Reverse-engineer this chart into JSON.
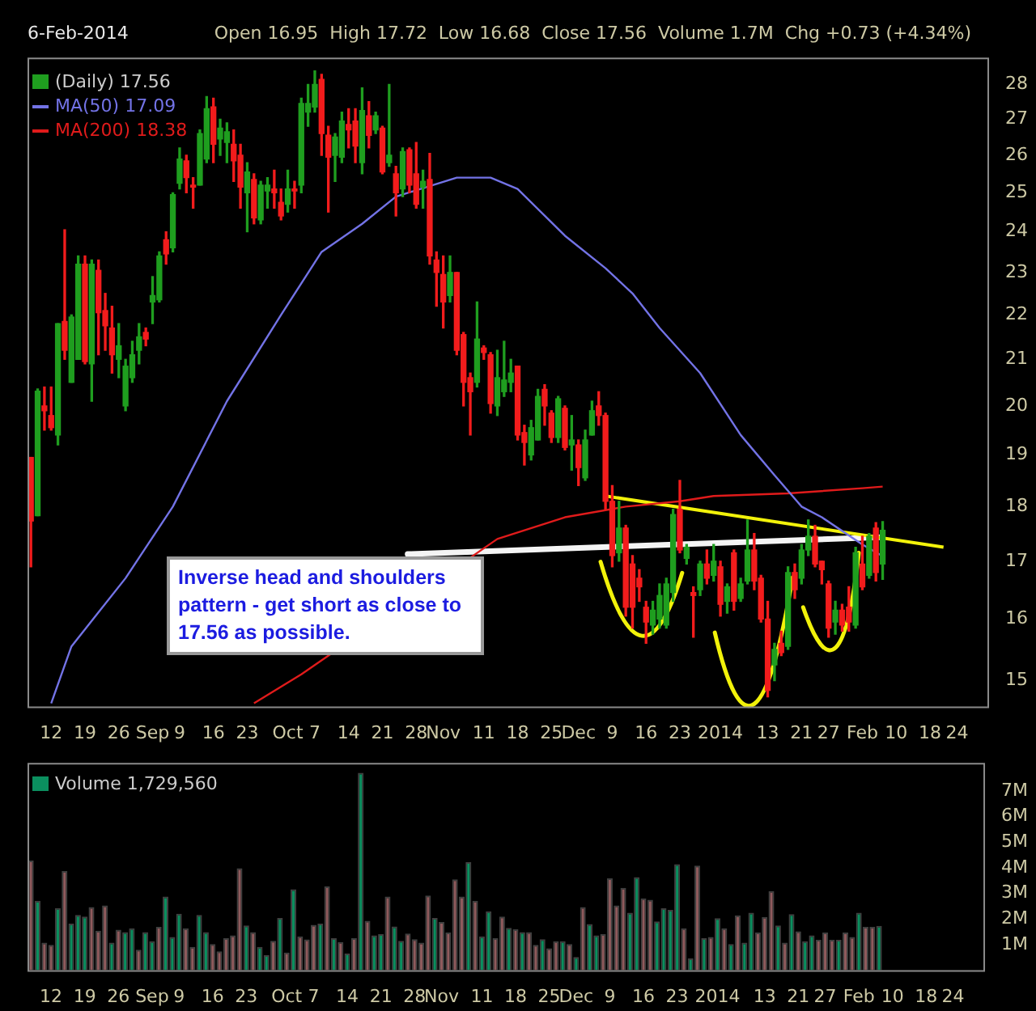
{
  "chart_data": [
    {
      "type": "candlestick",
      "subtitle": "6-Feb-2014",
      "annotations": [
        "Open 16.95  High 17.72  Low 16.68  Close 17.56  Volume 1.7M  Chg +0.73 (+4.34%)",
        "Inverse head and shoulders pattern - get short as close to 17.56 as possible."
      ],
      "categories": [
        null,
        null,
        null,
        "12",
        null,
        null,
        null,
        null,
        "19",
        null,
        null,
        null,
        null,
        "26",
        null,
        null,
        null,
        null,
        "Sep",
        null,
        null,
        null,
        "9",
        null,
        null,
        null,
        null,
        "16",
        null,
        null,
        null,
        null,
        "23",
        null,
        null,
        null,
        null,
        null,
        "Oct",
        null,
        null,
        null,
        "7",
        null,
        null,
        null,
        null,
        "14",
        null,
        null,
        null,
        null,
        "21",
        null,
        null,
        null,
        null,
        "28",
        null,
        null,
        null,
        "Nov",
        null,
        null,
        null,
        null,
        null,
        "11",
        null,
        null,
        null,
        null,
        "18",
        null,
        null,
        null,
        null,
        "25",
        null,
        null,
        null,
        "Dec",
        null,
        null,
        null,
        null,
        "9",
        null,
        null,
        null,
        null,
        "16",
        null,
        null,
        null,
        null,
        "23",
        null,
        null,
        null,
        null,
        null,
        "2014",
        null,
        null,
        null,
        null,
        null,
        null,
        "13",
        null,
        null,
        null,
        null,
        "21",
        null,
        null,
        null,
        "27",
        null,
        null,
        null,
        null,
        "Feb",
        null,
        null,
        null,
        null,
        "10",
        null,
        null,
        null,
        null,
        "18",
        null,
        null,
        null,
        "24",
        null,
        null,
        null,
        null
      ],
      "series": [
        {
          "type": "candlestick",
          "name": "(Daily) 17.56",
          "ohlc": [
            [
              18.95,
              18.95,
              16.9,
              17.73
            ],
            [
              17.83,
              20.36,
              17.83,
              20.31
            ],
            [
              20.0,
              20.4,
              19.5,
              19.9
            ],
            [
              19.8,
              20.4,
              19.5,
              19.55
            ],
            [
              19.4,
              21.8,
              19.2,
              21.8
            ],
            [
              21.85,
              24.05,
              21.0,
              21.2
            ],
            [
              20.5,
              22.0,
              20.5,
              21.95
            ],
            [
              21.0,
              23.4,
              21.0,
              23.2
            ],
            [
              23.2,
              23.4,
              20.9,
              20.95
            ],
            [
              20.9,
              23.3,
              20.1,
              23.2
            ],
            [
              23.05,
              23.3,
              21.1,
              22.05
            ],
            [
              22.1,
              22.5,
              21.2,
              21.75
            ],
            [
              21.7,
              22.2,
              20.7,
              21.1
            ],
            [
              21.0,
              21.8,
              20.6,
              21.3
            ],
            [
              20.0,
              21.0,
              19.9,
              20.85
            ],
            [
              20.6,
              21.4,
              20.5,
              21.1
            ],
            [
              21.2,
              21.8,
              20.9,
              21.5
            ],
            [
              21.6,
              21.7,
              21.3,
              21.45
            ],
            [
              22.3,
              22.9,
              21.8,
              22.45
            ],
            [
              22.35,
              23.5,
              22.3,
              23.4
            ],
            [
              23.8,
              24.0,
              23.2,
              23.45
            ],
            [
              23.6,
              25.0,
              23.5,
              24.95
            ],
            [
              25.25,
              26.2,
              25.1,
              25.9
            ],
            [
              25.85,
              26.0,
              25.0,
              25.4
            ],
            [
              25.2,
              25.4,
              24.6,
              25.15
            ],
            [
              25.2,
              26.7,
              25.2,
              26.6
            ],
            [
              25.9,
              27.65,
              25.8,
              27.3
            ],
            [
              27.35,
              27.6,
              25.8,
              26.3
            ],
            [
              26.45,
              27.0,
              26.0,
              26.75
            ],
            [
              26.35,
              26.9,
              25.8,
              26.65
            ],
            [
              26.3,
              26.7,
              25.3,
              25.85
            ],
            [
              26.0,
              26.3,
              24.6,
              25.15
            ],
            [
              25.0,
              25.8,
              24.0,
              25.55
            ],
            [
              25.35,
              25.5,
              24.2,
              24.35
            ],
            [
              24.3,
              25.3,
              24.2,
              25.2
            ],
            [
              25.05,
              25.4,
              24.6,
              25.2
            ],
            [
              25.1,
              25.6,
              24.6,
              25.0
            ],
            [
              24.75,
              25.1,
              24.3,
              24.4
            ],
            [
              24.7,
              25.6,
              24.5,
              25.1
            ],
            [
              25.1,
              25.3,
              24.6,
              25.05
            ],
            [
              25.2,
              27.6,
              25.0,
              27.45
            ],
            [
              27.2,
              28.0,
              26.8,
              27.45
            ],
            [
              27.35,
              28.4,
              27.2,
              28.0
            ],
            [
              28.15,
              28.3,
              26.0,
              26.6
            ],
            [
              26.55,
              26.8,
              24.5,
              25.95
            ],
            [
              26.0,
              26.6,
              25.3,
              26.5
            ],
            [
              25.95,
              27.2,
              25.8,
              26.95
            ],
            [
              26.85,
              27.3,
              26.2,
              26.7
            ],
            [
              26.95,
              27.3,
              25.8,
              26.25
            ],
            [
              25.8,
              27.9,
              25.5,
              27.25
            ],
            [
              27.1,
              27.5,
              26.2,
              26.55
            ],
            [
              26.7,
              27.2,
              26.6,
              27.1
            ],
            [
              26.75,
              26.8,
              25.5,
              25.55
            ],
            [
              25.8,
              28.0,
              25.7,
              26.0
            ],
            [
              25.5,
              25.7,
              24.4,
              25.0
            ],
            [
              25.1,
              26.2,
              24.9,
              26.1
            ],
            [
              26.15,
              26.2,
              25.0,
              25.2
            ],
            [
              25.5,
              26.35,
              24.6,
              24.7
            ],
            [
              25.15,
              25.6,
              24.6,
              25.3
            ],
            [
              25.35,
              26.05,
              23.2,
              23.4
            ],
            [
              23.3,
              23.5,
              22.2,
              23.0
            ],
            [
              22.95,
              23.4,
              21.7,
              22.3
            ],
            [
              22.45,
              23.4,
              22.3,
              23.0
            ],
            [
              23.0,
              23.0,
              21.1,
              21.2
            ],
            [
              21.55,
              21.6,
              20.0,
              20.5
            ],
            [
              20.6,
              20.7,
              19.4,
              20.3
            ],
            [
              20.5,
              22.3,
              20.4,
              21.45
            ],
            [
              21.25,
              21.3,
              21.0,
              21.15
            ],
            [
              21.1,
              21.15,
              19.85,
              20.05
            ],
            [
              20.0,
              21.2,
              19.8,
              20.6
            ],
            [
              20.3,
              21.4,
              20.2,
              20.55
            ],
            [
              20.5,
              21.0,
              20.3,
              20.7
            ],
            [
              20.85,
              20.85,
              19.3,
              19.4
            ],
            [
              19.45,
              19.6,
              18.8,
              19.25
            ],
            [
              19.0,
              19.7,
              18.9,
              19.55
            ],
            [
              19.3,
              20.35,
              19.3,
              20.2
            ],
            [
              20.35,
              20.45,
              19.6,
              20.0
            ],
            [
              19.85,
              19.9,
              19.25,
              19.35
            ],
            [
              19.35,
              20.2,
              19.25,
              20.15
            ],
            [
              19.95,
              20.0,
              19.1,
              19.15
            ],
            [
              19.2,
              19.8,
              18.7,
              19.3
            ],
            [
              19.2,
              19.3,
              18.4,
              18.75
            ],
            [
              18.55,
              19.5,
              18.5,
              19.3
            ],
            [
              19.4,
              20.1,
              19.4,
              19.9
            ],
            [
              20.0,
              20.3,
              19.6,
              19.8
            ],
            [
              19.8,
              19.85,
              17.95,
              18.1
            ],
            [
              18.1,
              18.4,
              16.9,
              17.1
            ],
            [
              17.15,
              18.1,
              17.0,
              17.6
            ],
            [
              17.6,
              17.65,
              16.05,
              16.2
            ],
            [
              16.95,
              17.1,
              15.85,
              16.2
            ],
            [
              16.7,
              16.85,
              16.3,
              16.55
            ],
            [
              16.2,
              16.3,
              15.6,
              15.95
            ],
            [
              15.9,
              16.3,
              15.75,
              16.15
            ],
            [
              16.0,
              16.6,
              15.85,
              16.4
            ],
            [
              15.9,
              16.7,
              15.85,
              16.6
            ],
            [
              16.45,
              17.95,
              16.3,
              17.85
            ],
            [
              17.95,
              18.5,
              17.15,
              17.2
            ],
            [
              17.05,
              17.3,
              16.95,
              17.25
            ],
            [
              16.45,
              16.55,
              15.7,
              16.4
            ],
            [
              16.5,
              17.0,
              16.4,
              16.95
            ],
            [
              16.95,
              17.2,
              16.6,
              16.7
            ],
            [
              16.75,
              17.3,
              16.65,
              17.0
            ],
            [
              16.9,
              17.0,
              16.05,
              16.25
            ],
            [
              16.3,
              16.6,
              16.1,
              16.55
            ],
            [
              17.15,
              17.2,
              16.15,
              16.3
            ],
            [
              16.35,
              16.7,
              16.3,
              16.6
            ],
            [
              16.65,
              17.75,
              16.6,
              17.2
            ],
            [
              17.2,
              17.5,
              16.5,
              16.65
            ],
            [
              16.7,
              16.75,
              15.95,
              16.0
            ],
            [
              16.0,
              16.3,
              14.75,
              14.85
            ],
            [
              15.25,
              15.6,
              15.0,
              15.5
            ],
            [
              15.6,
              15.8,
              15.4,
              15.45
            ],
            [
              15.55,
              16.9,
              15.5,
              16.8
            ],
            [
              16.8,
              16.95,
              16.35,
              16.5
            ],
            [
              16.7,
              17.3,
              16.6,
              17.2
            ],
            [
              17.2,
              17.75,
              17.1,
              17.45
            ],
            [
              17.45,
              17.65,
              16.9,
              16.95
            ],
            [
              17.0,
              17.0,
              16.6,
              16.85
            ],
            [
              16.6,
              16.65,
              15.7,
              15.85
            ],
            [
              15.95,
              16.3,
              15.75,
              16.15
            ],
            [
              16.15,
              16.25,
              15.8,
              15.9
            ],
            [
              16.2,
              16.55,
              15.8,
              15.95
            ],
            [
              15.9,
              17.25,
              15.85,
              17.15
            ],
            [
              16.95,
              17.45,
              16.5,
              16.55
            ],
            [
              16.75,
              17.5,
              16.7,
              17.45
            ],
            [
              17.6,
              17.7,
              16.65,
              16.8
            ],
            [
              16.95,
              17.72,
              16.68,
              17.56
            ],
            null,
            null,
            null,
            null,
            null,
            null,
            null,
            null,
            null,
            null,
            null,
            null,
            null,
            null,
            null
          ],
          "colors": [
            "#f21c1c",
            "#1f9e1f",
            "#f21c1c",
            "#f21c1c",
            "#1f9e1f",
            "#f21c1c",
            "#1f9e1f",
            "#1f9e1f",
            "#f21c1c",
            "#1f9e1f",
            "#f21c1c",
            "#f21c1c",
            "#f21c1c",
            "#1f9e1f",
            "#1f9e1f",
            "#1f9e1f",
            "#1f9e1f",
            "#f21c1c",
            "#1f9e1f",
            "#1f9e1f",
            "#f21c1c",
            "#1f9e1f",
            "#1f9e1f",
            "#f21c1c",
            "#f21c1c",
            "#1f9e1f",
            "#1f9e1f",
            "#f21c1c",
            "#1f9e1f",
            "#1f9e1f",
            "#f21c1c",
            "#f21c1c",
            "#1f9e1f",
            "#f21c1c",
            "#1f9e1f",
            "#1f9e1f",
            "#f21c1c",
            "#f21c1c",
            "#1f9e1f",
            "#f21c1c",
            "#1f9e1f",
            "#1f9e1f",
            "#1f9e1f",
            "#f21c1c",
            "#f21c1c",
            "#1f9e1f",
            "#1f9e1f",
            "#f21c1c",
            "#f21c1c",
            "#1f9e1f",
            "#f21c1c",
            "#1f9e1f",
            "#f21c1c",
            "#1f9e1f",
            "#f21c1c",
            "#1f9e1f",
            "#f21c1c",
            "#f21c1c",
            "#1f9e1f",
            "#f21c1c",
            "#f21c1c",
            "#f21c1c",
            "#1f9e1f",
            "#f21c1c",
            "#f21c1c",
            "#f21c1c",
            "#1f9e1f",
            "#f21c1c",
            "#f21c1c",
            "#1f9e1f",
            "#1f9e1f",
            "#1f9e1f",
            "#f21c1c",
            "#f21c1c",
            "#1f9e1f",
            "#1f9e1f",
            "#f21c1c",
            "#f21c1c",
            "#1f9e1f",
            "#f21c1c",
            "#1f9e1f",
            "#f21c1c",
            "#1f9e1f",
            "#1f9e1f",
            "#f21c1c",
            "#f21c1c",
            "#f21c1c",
            "#1f9e1f",
            "#f21c1c",
            "#f21c1c",
            "#f21c1c",
            "#f21c1c",
            "#1f9e1f",
            "#1f9e1f",
            "#1f9e1f",
            "#1f9e1f",
            "#f21c1c",
            "#1f9e1f",
            "#f21c1c",
            "#1f9e1f",
            "#f21c1c",
            "#1f9e1f",
            "#f21c1c",
            "#1f9e1f",
            "#f21c1c",
            "#1f9e1f",
            "#1f9e1f",
            "#f21c1c",
            "#f21c1c",
            "#f21c1c",
            "#1f9e1f",
            "#f21c1c",
            "#1f9e1f",
            "#f21c1c",
            "#1f9e1f",
            "#1f9e1f",
            "#f21c1c",
            "#f21c1c",
            "#f21c1c",
            "#1f9e1f",
            "#f21c1c",
            "#f21c1c",
            "#1f9e1f",
            "#f21c1c",
            "#1f9e1f",
            "#f21c1c",
            "#1f9e1f",
            null,
            null,
            null,
            null,
            null,
            null,
            null,
            null,
            null,
            null,
            null,
            null,
            null,
            null,
            null
          ]
        },
        {
          "type": "line",
          "name": "MA(50) 17.09",
          "color": "#7373e6",
          "values": [
            null,
            null,
            null,
            14.65,
            null,
            null,
            15.55,
            null,
            null,
            null,
            null,
            null,
            null,
            null,
            16.7,
            null,
            null,
            null,
            null,
            null,
            null,
            18.0,
            null,
            null,
            null,
            null,
            null,
            null,
            null,
            20.1,
            null,
            null,
            null,
            null,
            null,
            null,
            null,
            22.0,
            null,
            null,
            null,
            null,
            null,
            23.5,
            null,
            null,
            null,
            null,
            null,
            24.2,
            null,
            null,
            null,
            null,
            24.9,
            null,
            null,
            null,
            null,
            null,
            null,
            null,
            null,
            25.4,
            null,
            null,
            null,
            null,
            25.4,
            null,
            null,
            null,
            25.1,
            null,
            null,
            null,
            null,
            null,
            null,
            23.9,
            null,
            null,
            null,
            null,
            null,
            23.1,
            null,
            null,
            null,
            22.5,
            null,
            null,
            null,
            21.7,
            null,
            null,
            null,
            null,
            null,
            20.7,
            null,
            null,
            null,
            null,
            null,
            19.4,
            null,
            null,
            null,
            null,
            18.6,
            null,
            null,
            null,
            18.0,
            null,
            null,
            17.8,
            null,
            null,
            null,
            null,
            null,
            17.3,
            null,
            null,
            17.09,
            null,
            null,
            null,
            null,
            null,
            null,
            null,
            null,
            null,
            null,
            null,
            null,
            null,
            null,
            null
          ]
        },
        {
          "type": "line",
          "name": "MA(200) 18.38",
          "color": "#e01b1b",
          "values": [
            null,
            null,
            null,
            null,
            null,
            null,
            null,
            null,
            null,
            null,
            null,
            null,
            null,
            null,
            null,
            null,
            null,
            null,
            null,
            null,
            null,
            null,
            null,
            null,
            null,
            null,
            null,
            null,
            null,
            null,
            null,
            null,
            null,
            14.65,
            null,
            null,
            null,
            null,
            null,
            null,
            15.1,
            null,
            null,
            null,
            null,
            null,
            null,
            null,
            null,
            null,
            null,
            null,
            null,
            null,
            null,
            null,
            null,
            null,
            null,
            null,
            null,
            null,
            null,
            null,
            null,
            null,
            null,
            null,
            null,
            17.4,
            null,
            null,
            null,
            null,
            null,
            null,
            null,
            null,
            null,
            17.8,
            null,
            null,
            null,
            null,
            null,
            null,
            null,
            null,
            18.0,
            null,
            null,
            null,
            null,
            null,
            null,
            null,
            18.1,
            null,
            null,
            null,
            null,
            18.2,
            null,
            null,
            null,
            null,
            null,
            null,
            null,
            null,
            null,
            null,
            18.25,
            null,
            null,
            null,
            null,
            null,
            null,
            null,
            null,
            null,
            null,
            18.35,
            null,
            null,
            18.38,
            null,
            null,
            null,
            null,
            null,
            null,
            null,
            null,
            null,
            null,
            null,
            null,
            null,
            null,
            null
          ]
        },
        {
          "type": "line",
          "color": "#f2f20a",
          "values": [
            null,
            null,
            null,
            null,
            null,
            null,
            null,
            null,
            null,
            null,
            null,
            null,
            null,
            null,
            null,
            null,
            null,
            null,
            null,
            null,
            null,
            null,
            null,
            null,
            null,
            null,
            null,
            null,
            null,
            null,
            null,
            null,
            null,
            null,
            null,
            null,
            null,
            null,
            null,
            null,
            null,
            null,
            null,
            null,
            null,
            null,
            null,
            null,
            null,
            null,
            null,
            null,
            null,
            null,
            null,
            null,
            null,
            null,
            null,
            null,
            null,
            null,
            null,
            null,
            null,
            null,
            null,
            null,
            null,
            null,
            null,
            null,
            null,
            null,
            null,
            null,
            null,
            null,
            null,
            null,
            null,
            null,
            null,
            null,
            null,
            18.2,
            null,
            null,
            null,
            null,
            null,
            null,
            null,
            null,
            null,
            null,
            null,
            null,
            null,
            null,
            null,
            null,
            null,
            null,
            null,
            null,
            null,
            null,
            null,
            null,
            null,
            null,
            null,
            null,
            null,
            null,
            null,
            null,
            null,
            null,
            null,
            null,
            null,
            null,
            null,
            null,
            null,
            null,
            null,
            null,
            null,
            null,
            null,
            null,
            null,
            17.25,
            null,
            null,
            null,
            null,
            null,
            null
          ]
        }
      ],
      "ylim": [
        14.6,
        28.8
      ],
      "yticks": [
        15,
        16,
        17,
        18,
        19,
        20,
        21,
        22,
        23,
        24,
        25,
        26,
        27,
        28
      ],
      "log": true,
      "legend": "top left"
    },
    {
      "type": "bar",
      "categories": [
        null,
        null,
        null,
        "12",
        null,
        null,
        null,
        null,
        "19",
        null,
        null,
        null,
        null,
        "26",
        null,
        null,
        null,
        null,
        "Sep",
        null,
        null,
        null,
        "9",
        null,
        null,
        null,
        null,
        "16",
        null,
        null,
        null,
        null,
        "23",
        null,
        null,
        null,
        null,
        null,
        "Oct",
        null,
        null,
        null,
        "7",
        null,
        null,
        null,
        null,
        "14",
        null,
        null,
        null,
        null,
        "21",
        null,
        null,
        null,
        null,
        "28",
        null,
        null,
        null,
        "Nov",
        null,
        null,
        null,
        null,
        null,
        "11",
        null,
        null,
        null,
        null,
        "18",
        null,
        null,
        null,
        null,
        "25",
        null,
        null,
        null,
        "Dec",
        null,
        null,
        null,
        null,
        "9",
        null,
        null,
        null,
        null,
        "16",
        null,
        null,
        null,
        null,
        "23",
        null,
        null,
        null,
        null,
        null,
        "2014",
        null,
        null,
        null,
        null,
        null,
        null,
        "13",
        null,
        null,
        null,
        null,
        "21",
        null,
        null,
        null,
        "27",
        null,
        null,
        null,
        null,
        "Feb",
        null,
        null,
        null,
        null,
        "10",
        null,
        null,
        null,
        null,
        "18",
        null,
        null,
        null,
        "24",
        null,
        null,
        null,
        null
      ],
      "series": [
        {
          "name": "Volume 1,729,560",
          "values": [
            4.28,
            2.71,
            1.08,
            0.99,
            2.43,
            3.87,
            1.82,
            2.16,
            2.1,
            2.47,
            1.54,
            2.53,
            1.08,
            1.58,
            1.49,
            1.64,
            0.8,
            1.49,
            1.13,
            1.69,
            2.88,
            1.3,
            2.21,
            1.64,
            0.91,
            2.16,
            1.49,
            1.02,
            0.74,
            1.25,
            1.36,
            3.98,
            1.75,
            1.49,
            0.91,
            0.59,
            1.15,
            2.04,
            0.69,
            3.16,
            1.32,
            1.2,
            1.77,
            1.82,
            3.27,
            1.25,
            1.1,
            0.65,
            1.25,
            7.71,
            1.93,
            1.36,
            1.41,
            2.88,
            1.71,
            1.15,
            1.43,
            1.21,
            1.08,
            2.92,
            2.04,
            1.88,
            1.47,
            3.55,
            2.88,
            4.22,
            2.71,
            1.32,
            2.3,
            1.25,
            2.1,
            1.65,
            1.6,
            1.49,
            1.49,
            0.99,
            1.21,
            0.86,
            1.13,
            1.13,
            1.02,
            0.52,
            2.47,
            1.8,
            1.36,
            1.41,
            3.59,
            2.53,
            3.22,
            2.25,
            3.64,
            2.81,
            2.75,
            1.91,
            2.42,
            2.36,
            4.14,
            1.64,
            0.46,
            4.09,
            1.25,
            1.3,
            2.03,
            1.64,
            1.02,
            2.14,
            1.08,
            2.25,
            1.47,
            2.08,
            3.09,
            1.75,
            1.08,
            2.19,
            1.52,
            1.13,
            1.36,
            1.19,
            1.47,
            1.19,
            1.19,
            1.47,
            1.3,
            2.25,
            1.69,
            1.69,
            1.73,
            null,
            null,
            null,
            null,
            null,
            null,
            null,
            null,
            null,
            null,
            null,
            null,
            null,
            null,
            null
          ],
          "colors": [
            "#8f5b5d",
            "#0b8f5f",
            "#8f5b5d",
            "#8f5b5d",
            "#0b8f5f",
            "#8f5b5d",
            "#0b8f5f",
            "#0b8f5f",
            "#0b8f5f",
            "#8f5b5d",
            "#8f5b5d",
            "#8f5b5d",
            "#0b8f5f",
            "#8f5b5d",
            "#0b8f5f",
            "#0b8f5f",
            "#8f5b5d",
            "#0b8f5f",
            "#0b8f5f",
            "#8f5b5d",
            "#0b8f5f",
            "#0b8f5f",
            "#0b8f5f",
            "#8f5b5d",
            "#8f5b5d",
            "#0b8f5f",
            "#0b8f5f",
            "#8f5b5d",
            "#8f5b5d",
            "#8f5b5d",
            "#8f5b5d",
            "#8f5b5d",
            "#0b8f5f",
            "#8f5b5d",
            "#0b8f5f",
            "#0b8f5f",
            "#8f5b5d",
            "#0b8f5f",
            "#8f5b5d",
            "#0b8f5f",
            "#8f5b5d",
            "#8f5b5d",
            "#8f5b5d",
            "#0b8f5f",
            "#8f5b5d",
            "#0b8f5f",
            "#8f5b5d",
            "#0b8f5f",
            "#8f5b5d",
            "#0b8f5f",
            "#8f5b5d",
            "#0b8f5f",
            "#0b8f5f",
            "#8f5b5d",
            "#0b8f5f",
            "#0b8f5f",
            "#8f5b5d",
            "#8f5b5d",
            "#8f5b5d",
            "#8f5b5d",
            "#0b8f5f",
            "#8f5b5d",
            "#8f5b5d",
            "#8f5b5d",
            "#8f5b5d",
            "#0b8f5f",
            "#8f5b5d",
            "#0b8f5f",
            "#0b8f5f",
            "#8f5b5d",
            "#8f5b5d",
            "#0b8f5f",
            "#8f5b5d",
            "#0b8f5f",
            "#8f5b5d",
            "#8f5b5d",
            "#0b8f5f",
            "#8f5b5d",
            "#8f5b5d",
            "#0b8f5f",
            "#8f5b5d",
            "#0b8f5f",
            "#8f5b5d",
            "#0b8f5f",
            "#0b8f5f",
            "#8f5b5d",
            "#8f5b5d",
            "#8f5b5d",
            "#8f5b5d",
            "#0b8f5f",
            "#0b8f5f",
            "#8f5b5d",
            "#8f5b5d",
            "#0b8f5f",
            "#0b8f5f",
            "#0b8f5f",
            "#0b8f5f",
            "#8f5b5d",
            "#0b8f5f",
            "#8f5b5d",
            "#0b8f5f",
            "#8f5b5d",
            "#0b8f5f",
            "#8f5b5d",
            "#0b8f5f",
            "#8f5b5d",
            "#0b8f5f",
            "#0b8f5f",
            "#8f5b5d",
            "#8f5b5d",
            "#8f5b5d",
            "#0b8f5f",
            "#8f5b5d",
            "#0b8f5f",
            "#8f5b5d",
            "#0b8f5f",
            "#0b8f5f",
            "#8f5b5d",
            "#8f5b5d",
            "#8f5b5d",
            "#0b8f5f",
            "#8f5b5d",
            "#8f5b5d",
            "#0b8f5f",
            "#8f5b5d",
            "#8f5b5d",
            "#0b8f5f",
            null,
            null,
            null,
            null,
            null,
            null,
            null,
            null,
            null,
            null,
            null,
            null,
            null,
            null,
            null
          ]
        }
      ],
      "ylim": [
        0,
        8.1
      ],
      "yticks": [
        {
          "value": 1,
          "label": "1M"
        },
        {
          "value": 2,
          "label": "2M"
        },
        {
          "value": 3,
          "label": "3M"
        },
        {
          "value": 4,
          "label": "4M"
        },
        {
          "value": 5,
          "label": "5M"
        },
        {
          "value": 6,
          "label": "6M"
        },
        {
          "value": 7,
          "label": "7M"
        }
      ],
      "legend": "top left"
    }
  ]
}
